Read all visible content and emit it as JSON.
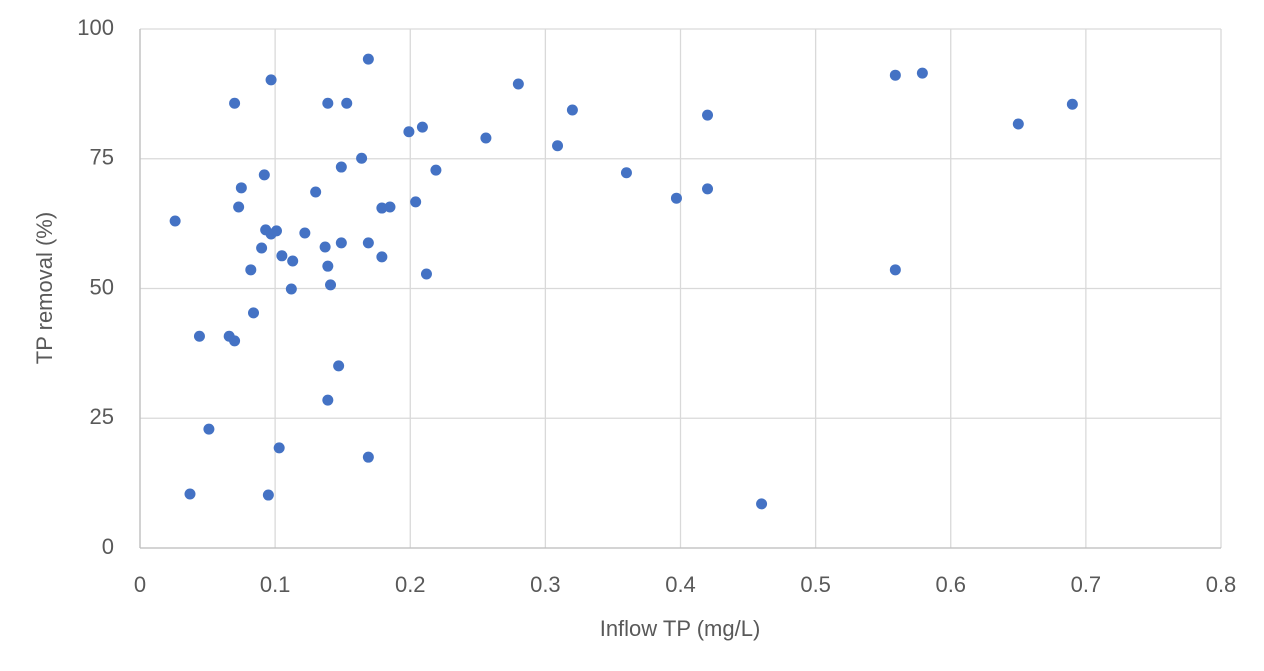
{
  "chart_data": {
    "type": "scatter",
    "x_label": "Inflow TP (mg/L)",
    "y_label": "TP removal (%)",
    "color": "#4472c4",
    "grid": true,
    "xlim": [
      0,
      0.8
    ],
    "xticks": [
      0,
      0.1,
      0.2,
      0.3,
      0.4,
      0.5,
      0.6,
      0.7,
      0.8
    ],
    "ylim": [
      0,
      100
    ],
    "yticks": [
      0,
      25,
      50,
      75,
      100
    ],
    "x": [
      0.026,
      0.037,
      0.044,
      0.051,
      0.066,
      0.07,
      0.07,
      0.073,
      0.075,
      0.082,
      0.084,
      0.09,
      0.092,
      0.093,
      0.095,
      0.097,
      0.097,
      0.101,
      0.103,
      0.105,
      0.112,
      0.113,
      0.122,
      0.13,
      0.137,
      0.139,
      0.139,
      0.139,
      0.141,
      0.147,
      0.149,
      0.149,
      0.153,
      0.164,
      0.169,
      0.169,
      0.169,
      0.179,
      0.179,
      0.185,
      0.199,
      0.204,
      0.209,
      0.212,
      0.219,
      0.256,
      0.28,
      0.309,
      0.32,
      0.36,
      0.397,
      0.42,
      0.42,
      0.46,
      0.559,
      0.559,
      0.579,
      0.65,
      0.69
    ],
    "values": [
      63.0,
      10.4,
      40.8,
      22.9,
      40.8,
      39.9,
      85.7,
      65.7,
      69.4,
      53.6,
      45.3,
      57.8,
      71.9,
      61.3,
      10.2,
      90.2,
      60.5,
      61.1,
      19.3,
      56.3,
      49.9,
      55.3,
      60.7,
      68.6,
      58.0,
      85.7,
      28.5,
      54.3,
      50.7,
      35.1,
      73.4,
      58.8,
      85.7,
      75.1,
      94.2,
      58.8,
      17.5,
      65.5,
      56.1,
      65.7,
      80.2,
      66.7,
      81.1,
      52.8,
      72.8,
      79.0,
      89.4,
      77.5,
      84.4,
      72.3,
      67.4,
      83.4,
      69.2,
      8.5,
      91.1,
      53.6,
      91.5,
      81.7,
      85.5
    ]
  }
}
